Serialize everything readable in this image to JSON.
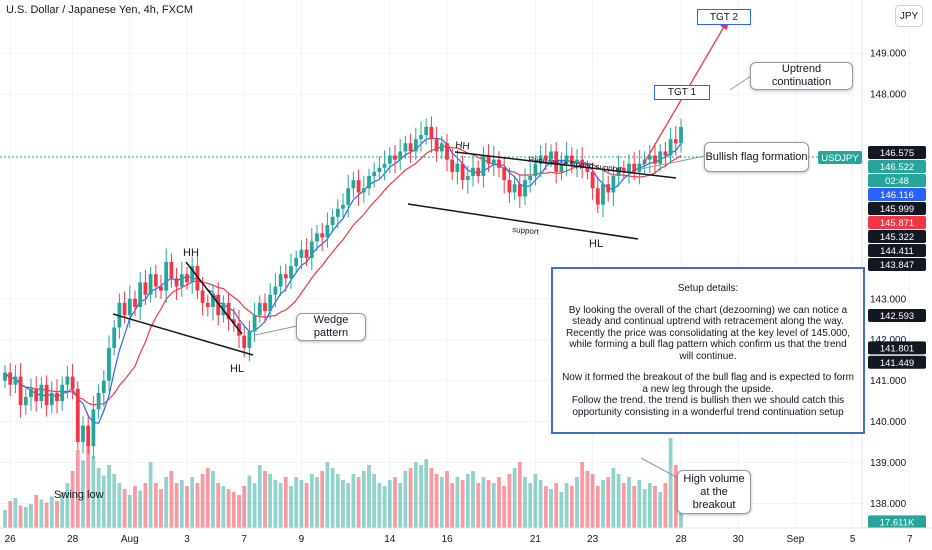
{
  "title": "U.S. Dollar / Japanese Yen, 4h, FXCM",
  "currency_label": "JPY",
  "chart_data": {
    "type": "candlestick",
    "symbol": "USDJPY",
    "ylim": [
      137.4,
      150.3
    ],
    "y_ticks": [
      138.0,
      139.0,
      140.0,
      141.0,
      142.0,
      143.0,
      148.0,
      149.0
    ],
    "x_ticks": [
      {
        "label": "26",
        "bar": 1
      },
      {
        "label": "28",
        "bar": 13
      },
      {
        "label": "Aug",
        "bar": 24
      },
      {
        "label": "3",
        "bar": 35
      },
      {
        "label": "7",
        "bar": 46
      },
      {
        "label": "9",
        "bar": 57
      },
      {
        "label": "14",
        "bar": 74
      },
      {
        "label": "16",
        "bar": 85
      },
      {
        "label": "21",
        "bar": 102
      },
      {
        "label": "23",
        "bar": 113
      },
      {
        "label": "28",
        "bar": 130
      },
      {
        "label": "30",
        "bar": 141
      },
      {
        "label": "Sep",
        "bar": 152
      },
      {
        "label": "5",
        "bar": 163
      },
      {
        "label": "7",
        "bar": 174
      }
    ],
    "close": [
      141.2,
      140.9,
      141.1,
      140.4,
      140.6,
      140.8,
      140.5,
      140.9,
      140.4,
      140.7,
      140.5,
      140.9,
      141.1,
      140.8,
      139.5,
      139.9,
      139.4,
      140.3,
      140.7,
      141.0,
      141.8,
      142.3,
      142.9,
      142.6,
      143.0,
      142.8,
      143.4,
      143.1,
      143.6,
      143.3,
      143.2,
      143.9,
      143.5,
      143.3,
      143.6,
      143.4,
      143.8,
      143.2,
      142.9,
      142.8,
      143.1,
      142.6,
      142.9,
      142.5,
      142.4,
      142.1,
      141.8,
      142.2,
      142.6,
      142.9,
      142.7,
      143.1,
      143.3,
      143.6,
      143.5,
      143.8,
      144.0,
      144.2,
      144.0,
      144.4,
      144.6,
      144.5,
      144.8,
      145.0,
      145.2,
      145.3,
      145.7,
      145.9,
      145.6,
      145.7,
      146.0,
      146.1,
      146.2,
      146.3,
      146.5,
      146.4,
      146.6,
      146.8,
      146.6,
      146.9,
      147.0,
      147.2,
      146.9,
      146.6,
      146.8,
      146.4,
      146.1,
      146.3,
      145.9,
      146.0,
      146.2,
      146.0,
      146.5,
      146.3,
      146.4,
      146.2,
      145.9,
      145.6,
      145.8,
      145.5,
      145.9,
      146.0,
      146.3,
      146.5,
      146.4,
      146.6,
      146.1,
      146.3,
      146.5,
      146.3,
      146.4,
      146.2,
      146.1,
      145.7,
      145.3,
      145.8,
      145.6,
      146.0,
      146.2,
      146.1,
      146.3,
      146.1,
      146.3,
      146.4,
      146.5,
      146.3,
      146.6,
      146.5,
      146.9,
      146.8,
      147.2
    ],
    "volume": [
      12,
      18,
      20,
      15,
      14,
      16,
      22,
      19,
      17,
      21,
      18,
      24,
      30,
      38,
      52,
      45,
      58,
      48,
      40,
      35,
      42,
      36,
      30,
      26,
      22,
      28,
      25,
      30,
      44,
      30,
      26,
      34,
      38,
      30,
      32,
      28,
      34,
      30,
      36,
      40,
      38,
      30,
      28,
      26,
      24,
      22,
      28,
      35,
      30,
      42,
      38,
      36,
      32,
      30,
      34,
      28,
      34,
      32,
      30,
      36,
      34,
      38,
      44,
      40,
      36,
      32,
      30,
      36,
      34,
      38,
      42,
      36,
      30,
      28,
      32,
      34,
      30,
      38,
      40,
      44,
      42,
      46,
      40,
      36,
      34,
      38,
      30,
      34,
      32,
      36,
      38,
      30,
      34,
      32,
      30,
      34,
      28,
      36,
      40,
      44,
      34,
      30,
      36,
      32,
      28,
      26,
      30,
      24,
      30,
      28,
      34,
      44,
      38,
      36,
      28,
      32,
      34,
      40,
      36,
      30,
      34,
      28,
      32,
      26,
      30,
      28,
      24,
      30,
      60,
      42,
      34
    ],
    "annotations": {
      "peaks": [
        "HH",
        "HH",
        "HL",
        "HL"
      ],
      "resistance": "Resistance flipped support",
      "support": "support",
      "swing_low": "Swing low",
      "targets": [
        "TGT 1",
        "TGT 2"
      ]
    },
    "price_tags": [
      {
        "label": "146.575",
        "price": 146.575,
        "color": "#131722"
      },
      {
        "label": "146.522",
        "price": 146.522,
        "color": "#26a69a"
      },
      {
        "label": "02:48",
        "price": 146.522,
        "color": "#26a69a"
      },
      {
        "label": "146.116",
        "price": 146.116,
        "color": "#2962ff"
      },
      {
        "label": "145.999",
        "price": 145.999,
        "color": "#131722"
      },
      {
        "label": "145.871",
        "price": 145.871,
        "color": "#f23645"
      },
      {
        "label": "145.322",
        "price": 145.322,
        "color": "#131722"
      },
      {
        "label": "144.411",
        "price": 144.411,
        "color": "#131722"
      },
      {
        "label": "143.847",
        "price": 143.847,
        "color": "#131722"
      },
      {
        "label": "142.593",
        "price": 142.593,
        "color": "#131722"
      },
      {
        "label": "141.801",
        "price": 141.801,
        "color": "#131722"
      },
      {
        "label": "141.449",
        "price": 141.449,
        "color": "#131722"
      },
      {
        "label": "17.611K",
        "price": 137.55,
        "color": "#26a69a"
      }
    ],
    "symbol_tag": "USDJPY",
    "colors": {
      "up": "#26a69a",
      "down": "#f23645",
      "ma_fast": "#2962ff",
      "ma_slow": "#f23645",
      "target_arrow": "#f23645"
    }
  },
  "callouts": {
    "uptrend": "Uptrend continuation",
    "bullish_flag": "Bullish flag formation",
    "wedge": "Wedge pattern",
    "high_volume": "High volume at the breakout"
  },
  "setup": {
    "heading": "Setup details:",
    "para1": "By looking the overall of the chart (dezooming) we can notice a steady and continual uptrend with retracement along the way. Recently the price was consolidating at the key level of 145.000, while forming a bull flag pattern which confirm us that the trend will continue.",
    "para2": "Now it formed the breakout of the bull flag and is expected to form a new leg through the upside.",
    "para3": "Follow the trend. the trend is bullish then we should catch this opportunity consisting in a wonderful trend continuation setup"
  }
}
